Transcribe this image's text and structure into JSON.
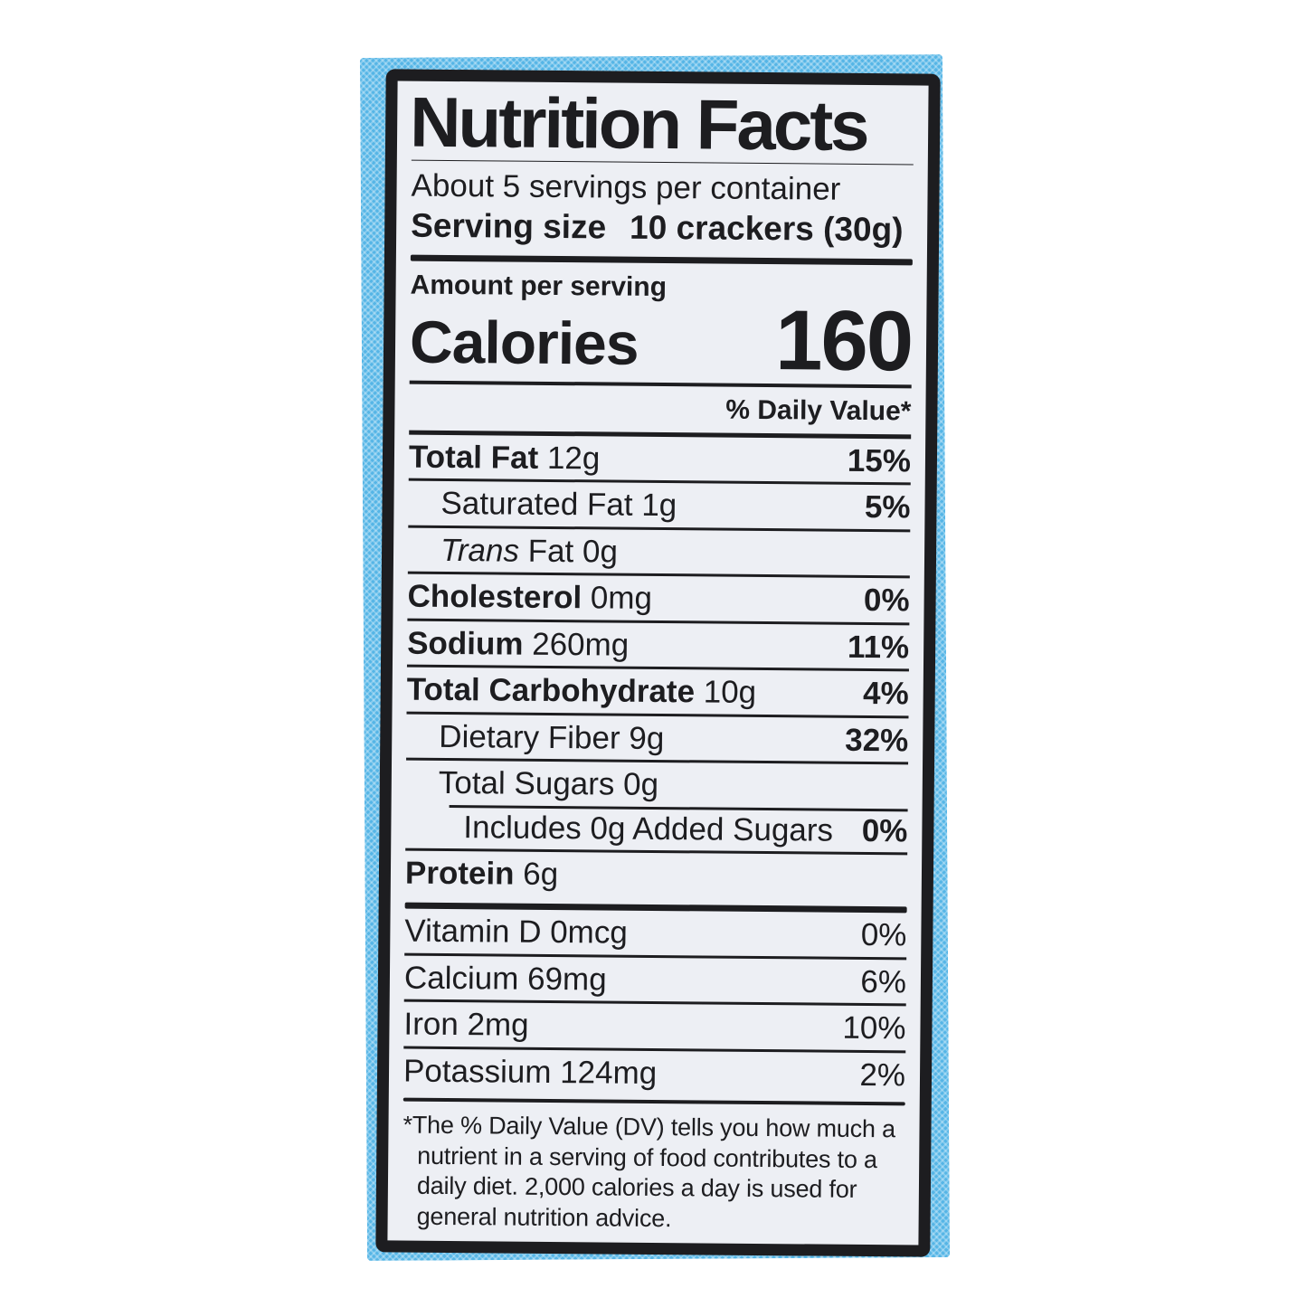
{
  "colors": {
    "package_blue": "#55b5e6",
    "label_background": "#edeff4",
    "ink": "#1d1d20"
  },
  "label": {
    "title": "Nutrition Facts",
    "servings_line": "About 5 servings per container",
    "serving_size_label": "Serving size",
    "serving_size_value": "10 crackers (30g)",
    "amount_per_serving": "Amount per serving",
    "calories_label": "Calories",
    "calories_value": "160",
    "daily_value_header": "% Daily Value*",
    "nutrients": [
      {
        "bold": "Total Fat",
        "rest": " 12g",
        "pct": "15%"
      },
      {
        "rest": "Saturated Fat 1g",
        "pct": "5%"
      },
      {
        "italic": "Trans",
        "rest": " Fat 0g",
        "pct": ""
      },
      {
        "bold": "Cholesterol",
        "rest": " 0mg",
        "pct": "0%"
      },
      {
        "bold": "Sodium",
        "rest": " 260mg",
        "pct": "11%"
      },
      {
        "bold": "Total Carbohydrate",
        "rest": " 10g",
        "pct": "4%"
      },
      {
        "rest": "Dietary Fiber 9g",
        "pct": "32%"
      },
      {
        "rest": "Total Sugars 0g",
        "pct": ""
      },
      {
        "rest": "Includes 0g Added Sugars",
        "pct": "0%"
      },
      {
        "bold": "Protein",
        "rest": " 6g",
        "pct": ""
      }
    ],
    "micronutrients": [
      {
        "rest": "Vitamin D 0mcg",
        "pct": "0%"
      },
      {
        "rest": "Calcium 69mg",
        "pct": "6%"
      },
      {
        "rest": "Iron 2mg",
        "pct": "10%"
      },
      {
        "rest": "Potassium 124mg",
        "pct": "2%"
      }
    ],
    "footnote": "*The % Daily Value (DV) tells you how much a nutrient in a serving of food contributes to a daily diet. 2,000 calories a day is used for general nutrition advice."
  }
}
